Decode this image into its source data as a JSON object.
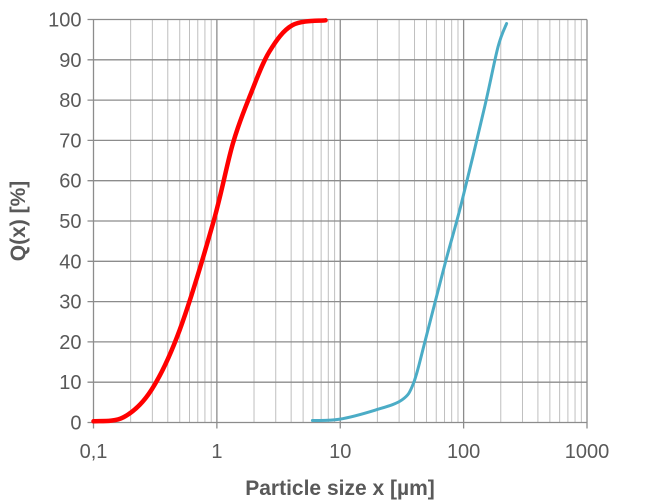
{
  "chart_data": {
    "type": "line",
    "xlabel": "Particle size x [µm]",
    "ylabel": "Q(x)  [%]",
    "x_scale": "log",
    "xlim": [
      0.1,
      1000
    ],
    "ylim": [
      0,
      100
    ],
    "x_ticks": [
      "0,1",
      "1",
      "10",
      "100",
      "1000"
    ],
    "y_ticks": [
      "0",
      "10",
      "20",
      "30",
      "40",
      "50",
      "60",
      "70",
      "80",
      "90",
      "100"
    ],
    "grid": true,
    "series": [
      {
        "color": "#ff0000",
        "x": [
          0.1,
          0.175,
          0.295,
          0.5,
          0.93,
          1.35,
          1.89,
          2.66,
          4.1,
          7.6
        ],
        "y": [
          0.3,
          1.3,
          8.1,
          23,
          49.4,
          69.3,
          81.7,
          92,
          98.6,
          99.8
        ]
      },
      {
        "color": "#4bacc6",
        "x": [
          5.95,
          9.8,
          19.3,
          31.6,
          39.3,
          49,
          70.8,
          96,
          148,
          190,
          223
        ],
        "y": [
          0.5,
          0.8,
          3.1,
          5.6,
          9.8,
          20.5,
          39.5,
          54.4,
          78.3,
          93.2,
          99
        ]
      }
    ]
  }
}
